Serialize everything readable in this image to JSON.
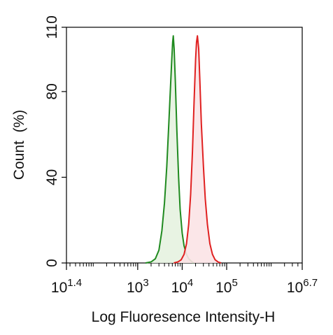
{
  "chart_data": {
    "type": "area",
    "xlabel": "Log Fluoresence Intensity-H",
    "ylabel": "Count  (%)",
    "x_scale": "log",
    "xlim": [
      25,
      5000000
    ],
    "ylim": [
      0,
      110
    ],
    "y_ticks": [
      0,
      40,
      80,
      110
    ],
    "x_ticks": [
      {
        "value": 25,
        "base": "10",
        "exp": "1.4"
      },
      {
        "value": 1000,
        "base": "10",
        "exp": "3"
      },
      {
        "value": 10000,
        "base": "10",
        "exp": "4"
      },
      {
        "value": 100000,
        "base": "10",
        "exp": "5"
      },
      {
        "value": 5000000,
        "base": "10",
        "exp": "6.7"
      }
    ],
    "grid": false,
    "series": [
      {
        "color": "#1f8a1f",
        "fill": "#e6f2e0",
        "points": [
          [
            1500,
            0
          ],
          [
            2000,
            0.5
          ],
          [
            2500,
            2
          ],
          [
            3000,
            6
          ],
          [
            3500,
            15
          ],
          [
            4000,
            28
          ],
          [
            4500,
            45
          ],
          [
            5000,
            65
          ],
          [
            5400,
            80
          ],
          [
            5800,
            94
          ],
          [
            6100,
            103
          ],
          [
            6300,
            106
          ],
          [
            6600,
            100
          ],
          [
            7000,
            85
          ],
          [
            7600,
            62
          ],
          [
            8300,
            40
          ],
          [
            9000,
            25
          ],
          [
            10000,
            14
          ],
          [
            11000,
            8
          ],
          [
            12500,
            4
          ],
          [
            14000,
            2
          ],
          [
            16000,
            0.8
          ],
          [
            18000,
            0
          ]
        ]
      },
      {
        "color": "#e02020",
        "fill": "#fbe3e5",
        "points": [
          [
            6500,
            0
          ],
          [
            8000,
            0.5
          ],
          [
            9500,
            1.5
          ],
          [
            11000,
            4
          ],
          [
            12500,
            9
          ],
          [
            14000,
            18
          ],
          [
            15500,
            32
          ],
          [
            17000,
            52
          ],
          [
            18500,
            75
          ],
          [
            20000,
            95
          ],
          [
            21000,
            103
          ],
          [
            22000,
            106
          ],
          [
            23500,
            100
          ],
          [
            25000,
            85
          ],
          [
            27000,
            65
          ],
          [
            30000,
            45
          ],
          [
            33000,
            30
          ],
          [
            37000,
            18
          ],
          [
            42000,
            9
          ],
          [
            48000,
            4
          ],
          [
            55000,
            1.5
          ],
          [
            65000,
            0.4
          ],
          [
            75000,
            0
          ]
        ]
      }
    ]
  }
}
